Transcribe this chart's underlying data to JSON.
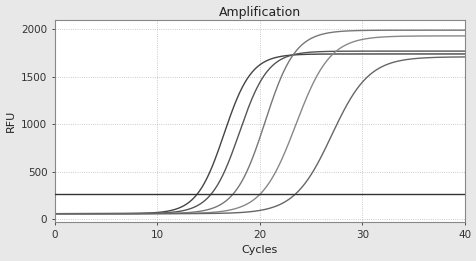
{
  "title": "Amplification",
  "xlabel": "Cycles",
  "ylabel": "RFU",
  "xlim": [
    0,
    40
  ],
  "ylim": [
    -30,
    2100
  ],
  "xticks": [
    0,
    10,
    20,
    30,
    40
  ],
  "yticks": [
    0,
    500,
    1000,
    1500,
    2000
  ],
  "threshold_y": 265,
  "threshold_color": "#333333",
  "threshold_lw": 1.0,
  "grid_color": "#aaaaaa",
  "grid_linestyle": ":",
  "background_color": "#ffffff",
  "outer_background": "#e8e8e8",
  "curves": [
    {
      "midpoint": 16.5,
      "L": 1680,
      "k": 0.75,
      "baseline": 60,
      "color": "#444444",
      "lw": 1.0
    },
    {
      "midpoint": 18.0,
      "L": 1710,
      "k": 0.72,
      "baseline": 60,
      "color": "#555555",
      "lw": 1.0
    },
    {
      "midpoint": 20.5,
      "L": 1930,
      "k": 0.68,
      "baseline": 60,
      "color": "#777777",
      "lw": 1.0
    },
    {
      "midpoint": 23.5,
      "L": 1870,
      "k": 0.6,
      "baseline": 60,
      "color": "#888888",
      "lw": 1.0
    },
    {
      "midpoint": 27.0,
      "L": 1650,
      "k": 0.55,
      "baseline": 60,
      "color": "#666666",
      "lw": 1.0
    }
  ]
}
